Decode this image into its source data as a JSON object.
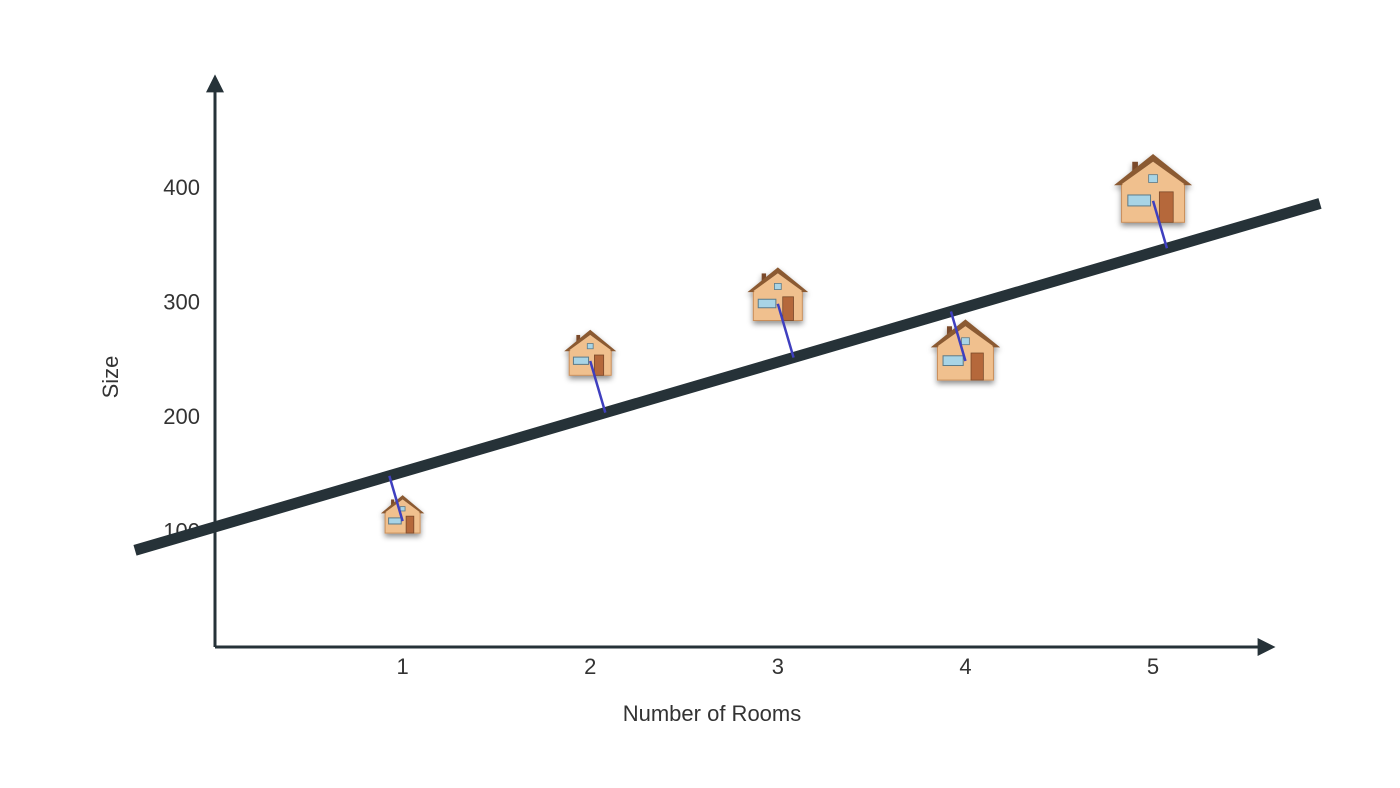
{
  "chart_data": {
    "type": "scatter",
    "x_label": "Number of Rooms",
    "y_label": "Size",
    "x": [
      1,
      2,
      3,
      4,
      5
    ],
    "values": [
      110,
      250,
      300,
      250,
      390
    ],
    "fit": {
      "intercept": 105,
      "slope": 48
    },
    "xlim": [
      0,
      5.65
    ],
    "ylim": [
      0,
      500
    ],
    "xticks": [
      1,
      2,
      3,
      4,
      5
    ],
    "yticks": [
      100,
      200,
      300,
      400
    ],
    "fit_color": "#263238",
    "residual_color": "#3f3fbf"
  }
}
